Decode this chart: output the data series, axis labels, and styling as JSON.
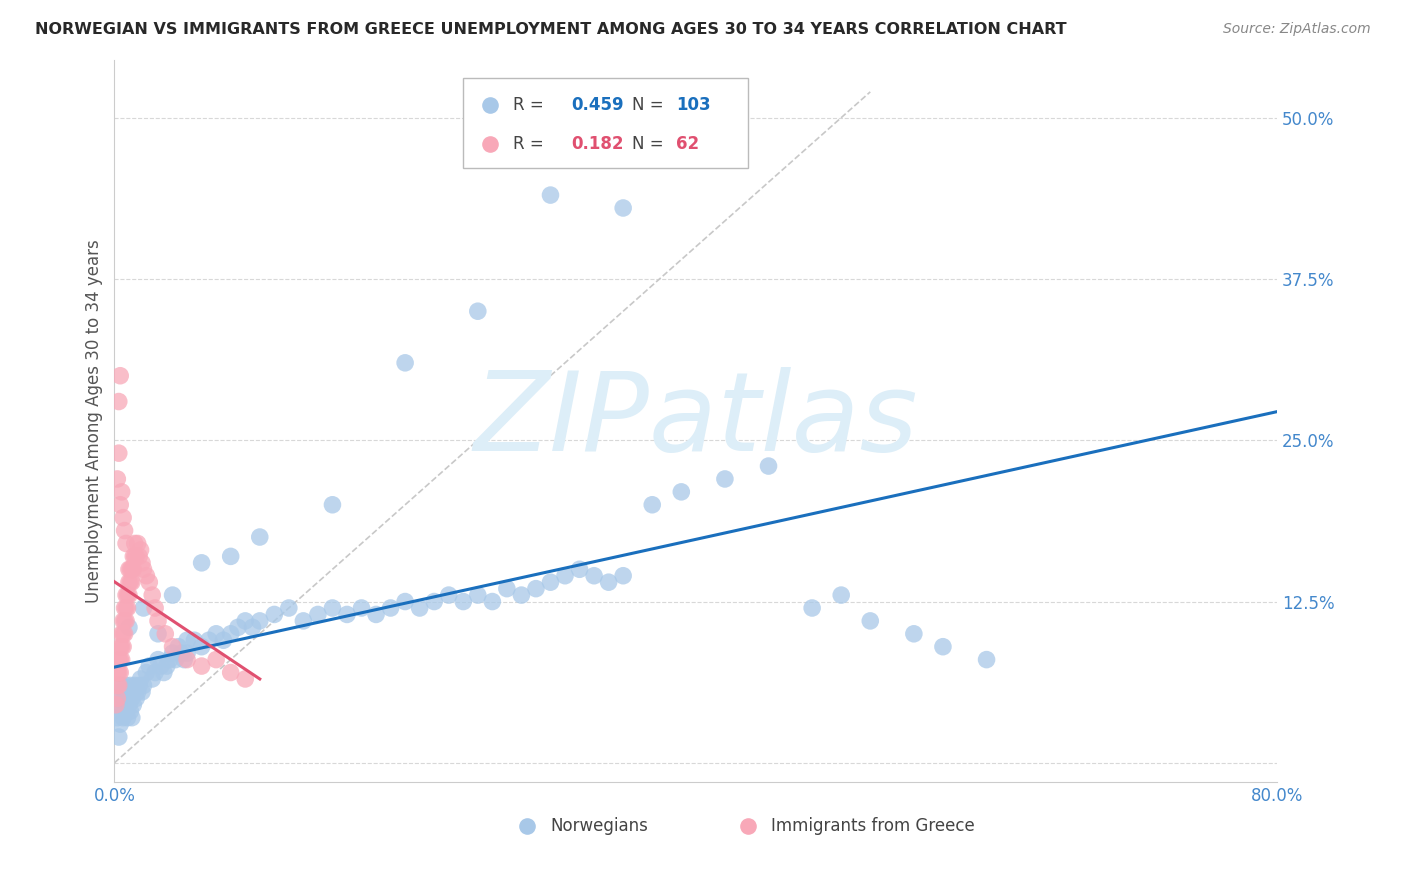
{
  "title": "NORWEGIAN VS IMMIGRANTS FROM GREECE UNEMPLOYMENT AMONG AGES 30 TO 34 YEARS CORRELATION CHART",
  "source": "Source: ZipAtlas.com",
  "ylabel": "Unemployment Among Ages 30 to 34 years",
  "xlim": [
    0.0,
    0.8
  ],
  "ylim": [
    -0.015,
    0.545
  ],
  "yticks": [
    0.0,
    0.125,
    0.25,
    0.375,
    0.5
  ],
  "yticklabels": [
    "",
    "12.5%",
    "25.0%",
    "37.5%",
    "50.0%"
  ],
  "xtick_positions": [
    0.0,
    0.1,
    0.2,
    0.3,
    0.4,
    0.5,
    0.6,
    0.7,
    0.8
  ],
  "xticklabels": [
    "0.0%",
    "",
    "",
    "",
    "",
    "",
    "",
    "",
    "80.0%"
  ],
  "norwegian_R": 0.459,
  "norwegian_N": 103,
  "immigrant_R": 0.182,
  "immigrant_N": 62,
  "norwegian_color": "#a8c8e8",
  "immigrant_color": "#f8a8b8",
  "norwegian_line_color": "#1a6fbd",
  "immigrant_line_color": "#e05070",
  "ref_line_color": "#c8c8c8",
  "grid_color": "#d8d8d8",
  "axis_color": "#4488cc",
  "title_color": "#282828",
  "watermark_color": "#ddeef8",
  "nor_x": [
    0.002,
    0.003,
    0.003,
    0.004,
    0.004,
    0.005,
    0.005,
    0.006,
    0.006,
    0.007,
    0.007,
    0.008,
    0.008,
    0.009,
    0.009,
    0.01,
    0.01,
    0.011,
    0.011,
    0.012,
    0.012,
    0.013,
    0.013,
    0.014,
    0.015,
    0.016,
    0.017,
    0.018,
    0.019,
    0.02,
    0.022,
    0.024,
    0.026,
    0.028,
    0.03,
    0.032,
    0.034,
    0.036,
    0.038,
    0.04,
    0.042,
    0.044,
    0.046,
    0.048,
    0.05,
    0.055,
    0.06,
    0.065,
    0.07,
    0.075,
    0.08,
    0.085,
    0.09,
    0.095,
    0.1,
    0.11,
    0.12,
    0.13,
    0.14,
    0.15,
    0.16,
    0.17,
    0.18,
    0.19,
    0.2,
    0.21,
    0.22,
    0.23,
    0.24,
    0.25,
    0.26,
    0.27,
    0.28,
    0.29,
    0.3,
    0.31,
    0.32,
    0.33,
    0.34,
    0.35,
    0.37,
    0.39,
    0.42,
    0.45,
    0.48,
    0.5,
    0.52,
    0.55,
    0.57,
    0.6,
    0.35,
    0.3,
    0.25,
    0.2,
    0.15,
    0.1,
    0.08,
    0.06,
    0.04,
    0.02,
    0.01,
    0.03,
    0.05
  ],
  "nor_y": [
    0.035,
    0.02,
    0.045,
    0.03,
    0.055,
    0.04,
    0.06,
    0.035,
    0.05,
    0.045,
    0.055,
    0.04,
    0.06,
    0.035,
    0.05,
    0.045,
    0.055,
    0.04,
    0.06,
    0.035,
    0.05,
    0.045,
    0.055,
    0.06,
    0.05,
    0.055,
    0.06,
    0.065,
    0.055,
    0.06,
    0.07,
    0.075,
    0.065,
    0.07,
    0.08,
    0.075,
    0.07,
    0.075,
    0.08,
    0.085,
    0.08,
    0.09,
    0.085,
    0.08,
    0.085,
    0.095,
    0.09,
    0.095,
    0.1,
    0.095,
    0.1,
    0.105,
    0.11,
    0.105,
    0.11,
    0.115,
    0.12,
    0.11,
    0.115,
    0.12,
    0.115,
    0.12,
    0.115,
    0.12,
    0.125,
    0.12,
    0.125,
    0.13,
    0.125,
    0.13,
    0.125,
    0.135,
    0.13,
    0.135,
    0.14,
    0.145,
    0.15,
    0.145,
    0.14,
    0.145,
    0.2,
    0.21,
    0.22,
    0.23,
    0.12,
    0.13,
    0.11,
    0.1,
    0.09,
    0.08,
    0.43,
    0.44,
    0.35,
    0.31,
    0.2,
    0.175,
    0.16,
    0.155,
    0.13,
    0.12,
    0.105,
    0.1,
    0.095
  ],
  "imm_x": [
    0.001,
    0.002,
    0.002,
    0.002,
    0.003,
    0.003,
    0.003,
    0.004,
    0.004,
    0.004,
    0.005,
    0.005,
    0.005,
    0.006,
    0.006,
    0.006,
    0.007,
    0.007,
    0.007,
    0.008,
    0.008,
    0.008,
    0.009,
    0.009,
    0.01,
    0.01,
    0.01,
    0.011,
    0.011,
    0.012,
    0.012,
    0.013,
    0.013,
    0.014,
    0.014,
    0.015,
    0.016,
    0.017,
    0.018,
    0.019,
    0.02,
    0.022,
    0.024,
    0.026,
    0.028,
    0.03,
    0.035,
    0.04,
    0.05,
    0.06,
    0.07,
    0.08,
    0.09,
    0.002,
    0.003,
    0.004,
    0.005,
    0.006,
    0.007,
    0.008,
    0.003,
    0.004
  ],
  "imm_y": [
    0.045,
    0.05,
    0.06,
    0.07,
    0.06,
    0.07,
    0.08,
    0.07,
    0.08,
    0.09,
    0.08,
    0.09,
    0.1,
    0.09,
    0.1,
    0.11,
    0.1,
    0.11,
    0.12,
    0.11,
    0.12,
    0.13,
    0.12,
    0.13,
    0.13,
    0.14,
    0.15,
    0.14,
    0.15,
    0.14,
    0.15,
    0.16,
    0.15,
    0.16,
    0.17,
    0.16,
    0.17,
    0.16,
    0.165,
    0.155,
    0.15,
    0.145,
    0.14,
    0.13,
    0.12,
    0.11,
    0.1,
    0.09,
    0.08,
    0.075,
    0.08,
    0.07,
    0.065,
    0.22,
    0.24,
    0.2,
    0.21,
    0.19,
    0.18,
    0.17,
    0.28,
    0.3
  ]
}
